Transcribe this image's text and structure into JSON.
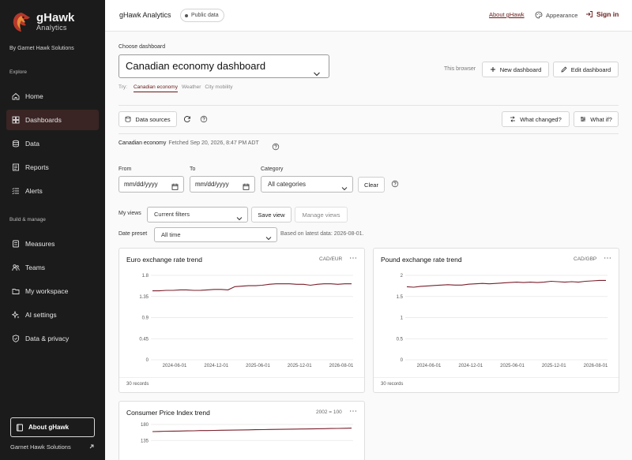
{
  "sidebar": {
    "brand_name": "gHawk",
    "brand_sub": "Analytics",
    "by_line": "By Garnet Hawk Solutions",
    "explore_label": "Explore",
    "build_label": "Build & manage",
    "explore_items": [
      {
        "label": "Home",
        "icon": "home-icon"
      },
      {
        "label": "Dashboards",
        "icon": "dashboard-icon",
        "active": true
      },
      {
        "label": "Data",
        "icon": "database-icon"
      },
      {
        "label": "Reports",
        "icon": "report-icon"
      },
      {
        "label": "Alerts",
        "icon": "alert-icon"
      }
    ],
    "build_items": [
      {
        "label": "Measures",
        "icon": "measures-icon"
      },
      {
        "label": "Teams",
        "icon": "teams-icon"
      },
      {
        "label": "My workspace",
        "icon": "workspace-icon"
      },
      {
        "label": "AI settings",
        "icon": "sparkle-icon"
      },
      {
        "label": "Data & privacy",
        "icon": "shield-icon"
      }
    ],
    "about_label": "About gHawk",
    "footer_org": "Garnet Hawk Solutions"
  },
  "topbar": {
    "app_title": "gHawk Analytics",
    "badge": "Public data",
    "about_link": "About gHawk",
    "appearance": "Appearance",
    "signin": "Sign in"
  },
  "main": {
    "choose_label": "Choose dashboard",
    "dashboard_selected": "Canadian economy dashboard",
    "try_label": "Try:",
    "try_chips": [
      "Canadian economy",
      "Weather",
      "City mobility"
    ],
    "this_browser": "This browser",
    "new_dashboard": "New dashboard",
    "edit_dashboard": "Edit dashboard",
    "data_sources": "Data sources",
    "what_changed": "What changed?",
    "what_if": "What if?",
    "status_name": "Canadian economy",
    "status_fetched": "Fetched Sep 20, 2026, 8:47 PM ADT",
    "from_label": "From",
    "to_label": "To",
    "category_label": "Category",
    "from_value": "mm/dd/yyyy",
    "to_value": "mm/dd/yyyy",
    "category_value": "All categories",
    "clear": "Clear",
    "my_views_label": "My views",
    "views_value": "Current filters",
    "save_view": "Save view",
    "manage_views": "Manage views",
    "preset_label": "Date preset",
    "preset_value": "All time",
    "based_on": "Based on latest data: 2026-08-01."
  },
  "colors": {
    "accent": "#6a1b1b",
    "sidebar_bg": "#1b1b1b",
    "line": "#7a1f2b"
  },
  "chart_data": [
    {
      "type": "line",
      "title": "Euro exchange rate trend",
      "unit": "CAD/EUR",
      "records": "30 records",
      "ylim": [
        0,
        1.8
      ],
      "yticks": [
        "0",
        "0.45",
        "0.9",
        "1.35",
        "1.8"
      ],
      "xticks": [
        "2024-06-01",
        "2024-12-01",
        "2025-06-01",
        "2025-12-01",
        "2026-08-01"
      ],
      "values": [
        1.47,
        1.47,
        1.48,
        1.48,
        1.49,
        1.49,
        1.48,
        1.48,
        1.49,
        1.5,
        1.5,
        1.49,
        1.56,
        1.57,
        1.58,
        1.58,
        1.59,
        1.61,
        1.62,
        1.62,
        1.62,
        1.61,
        1.61,
        1.59,
        1.61,
        1.62,
        1.62,
        1.61,
        1.62,
        1.62
      ]
    },
    {
      "type": "line",
      "title": "Pound exchange rate trend",
      "unit": "CAD/GBP",
      "records": "30 records",
      "ylim": [
        0,
        2
      ],
      "yticks": [
        "0",
        "0.5",
        "1",
        "1.5",
        "2"
      ],
      "xticks": [
        "2024-06-01",
        "2024-12-01",
        "2025-06-01",
        "2025-12-01",
        "2026-08-01"
      ],
      "values": [
        1.73,
        1.72,
        1.74,
        1.75,
        1.76,
        1.77,
        1.78,
        1.77,
        1.77,
        1.79,
        1.8,
        1.81,
        1.8,
        1.81,
        1.82,
        1.83,
        1.84,
        1.83,
        1.84,
        1.83,
        1.84,
        1.86,
        1.85,
        1.84,
        1.85,
        1.84,
        1.86,
        1.87,
        1.88,
        1.88
      ]
    },
    {
      "type": "line",
      "title": "Consumer Price Index trend",
      "unit": "2002 = 100",
      "ylim": [
        0,
        180
      ],
      "yticks": [
        "135",
        "180"
      ],
      "values": [
        160,
        160.5,
        161,
        161.3,
        161.6,
        162,
        162.3,
        162.8,
        163,
        163.4,
        163.7,
        164,
        164.3,
        164.6,
        165,
        165.3,
        165.5,
        165.9,
        166.2,
        166.5,
        166.8,
        167,
        167.3,
        167.6,
        168,
        168.3,
        168.6,
        169,
        169.4,
        169.8
      ]
    }
  ]
}
